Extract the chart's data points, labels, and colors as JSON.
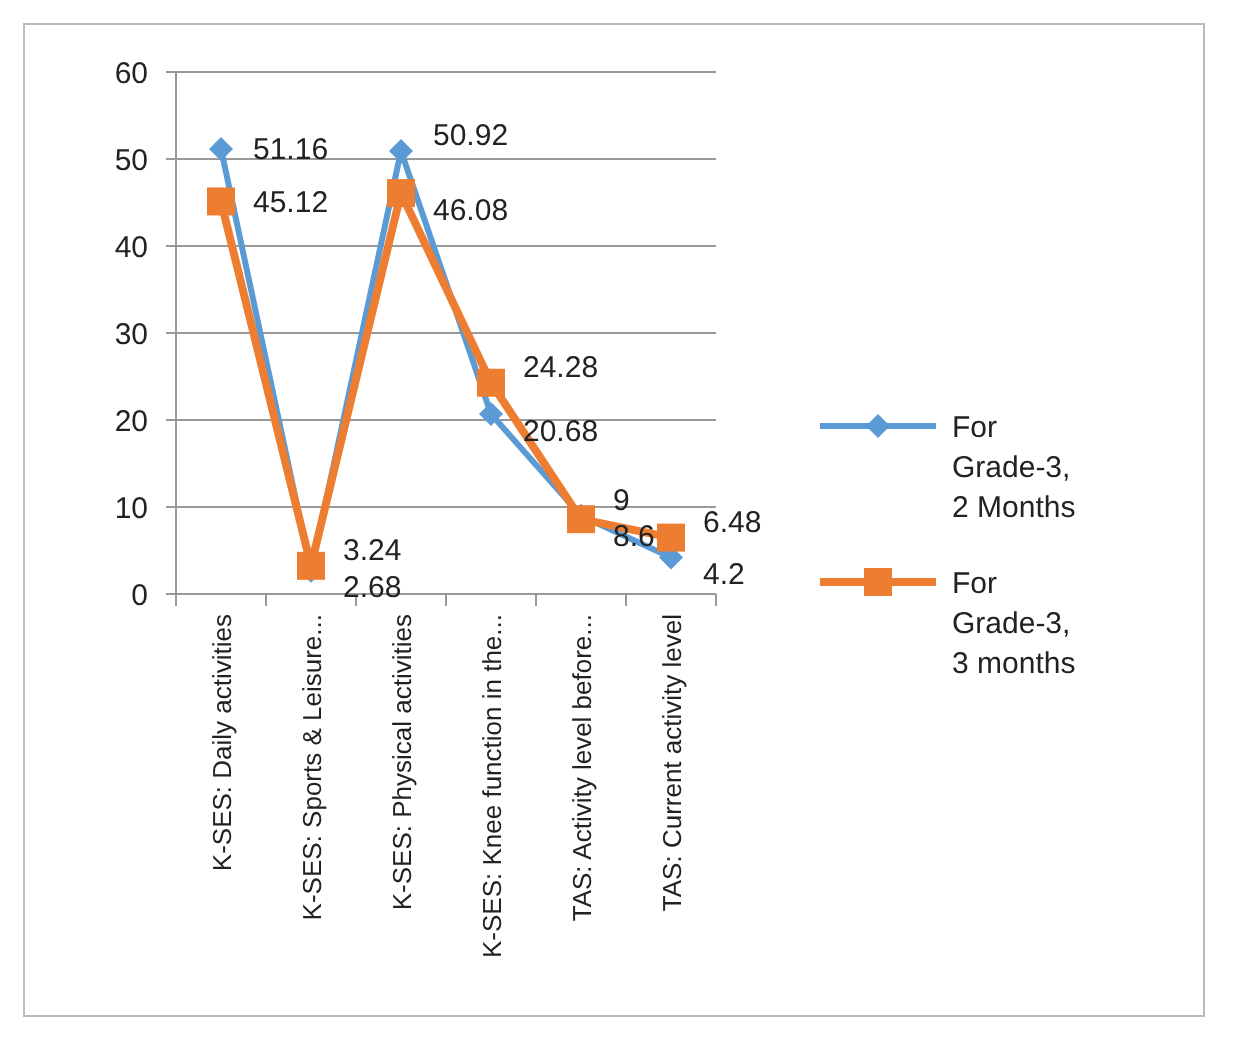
{
  "chart_data": {
    "type": "line",
    "categories": [
      "K-SES: Daily activities",
      "K-SES: Sports & Leisure...",
      "K-SES: Physical activities",
      "K-SES: Knee function in the...",
      "TAS: Activity level before...",
      "TAS: Current activity level"
    ],
    "series": [
      {
        "name": "For Grade-3, 2 Months",
        "color": "#5b9bd5",
        "marker": "diamond",
        "values": [
          51.16,
          2.68,
          50.92,
          20.68,
          9,
          4.2
        ]
      },
      {
        "name": "For Grade-3, 3 months",
        "color": "#ed7d31",
        "marker": "square",
        "values": [
          45.12,
          3.24,
          46.08,
          24.28,
          8.6,
          6.48
        ]
      }
    ],
    "ylim": [
      0,
      60
    ],
    "yticks": [
      0,
      10,
      20,
      30,
      40,
      50,
      60
    ],
    "grid": "y",
    "legend": "right",
    "data_labels": true
  }
}
